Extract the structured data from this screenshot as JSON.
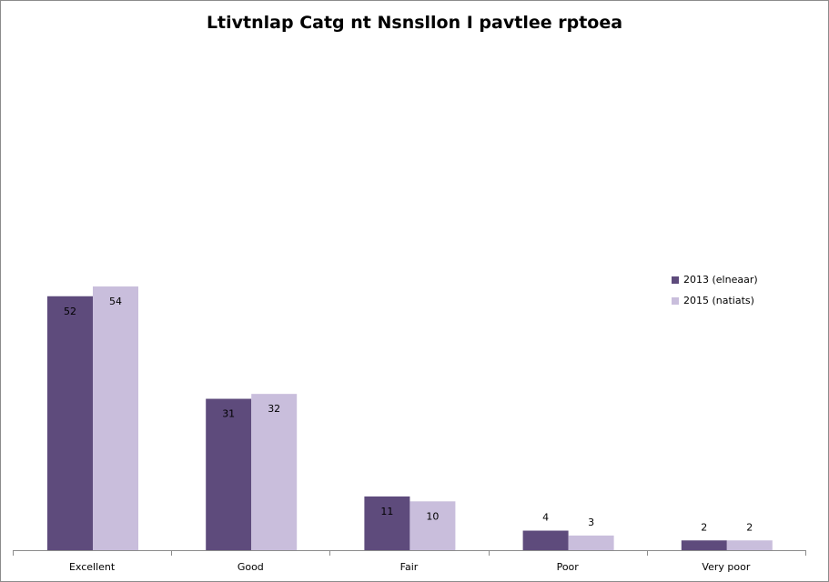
{
  "chart_data": {
    "type": "bar",
    "title": "Ltivtnlap Catg nt Nsnsllon I pavtlee rptoea",
    "xlabel": "",
    "ylabel": "",
    "ylim": [
      0,
      56
    ],
    "grid": false,
    "legend_position": "right",
    "categories": [
      "Excellent",
      "Good",
      "Fair",
      "Poor",
      "Very poor"
    ],
    "series": [
      {
        "name": "2013 (elneaar)",
        "color": "#5e4b7c",
        "values": [
          52,
          31,
          11,
          4,
          2
        ]
      },
      {
        "name": "2015 (natiats)",
        "color": "#c9bedc",
        "values": [
          54,
          32,
          10,
          3,
          2
        ]
      }
    ]
  }
}
